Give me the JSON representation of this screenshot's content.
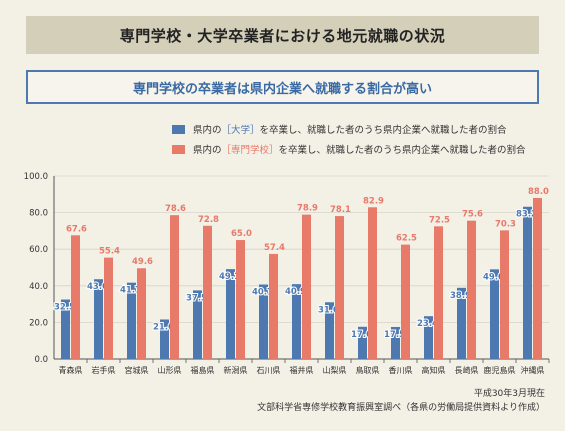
{
  "title": "専門学校・大学卒業者における地元就職の状況",
  "subtitle": "専門学校の卒業者は県内企業へ就職する割合が高い",
  "legend": [
    {
      "pre": "県内の",
      "highlight": "［大学］",
      "post": "を卒業し、就職した者のうち県内企業へ就職した者の割合",
      "color": "#4e79b0"
    },
    {
      "pre": "県内の",
      "highlight": "［専門学校］",
      "post": "を卒業し、就職した者のうち県内企業へ就職した者の割合",
      "color": "#e87a6a"
    }
  ],
  "footnote": {
    "date": "平成30年3月現在",
    "source": "文部科学省専修学校教育振興室調べ（各県の労働局提供資料より作成）"
  },
  "chart_data": {
    "type": "bar",
    "categories": [
      "青森県",
      "岩手県",
      "宮城県",
      "山形県",
      "福島県",
      "新潟県",
      "石川県",
      "福井県",
      "山梨県",
      "鳥取県",
      "香川県",
      "高知県",
      "長崎県",
      "鹿児島県",
      "沖縄県"
    ],
    "series": [
      {
        "values": [
          32.5,
          43.6,
          41.7,
          21.6,
          37.5,
          49.1,
          40.7,
          40.9,
          31.0,
          17.6,
          17.5,
          23.4,
          38.9,
          49.0,
          83.2
        ],
        "color": "#4e79b0"
      },
      {
        "values": [
          67.6,
          55.4,
          49.6,
          78.6,
          72.8,
          65.0,
          57.4,
          78.9,
          78.1,
          82.9,
          62.5,
          72.5,
          75.6,
          70.3,
          88.0
        ],
        "color": "#e87a6a"
      }
    ],
    "ylim": [
      0,
      100
    ],
    "yticks": [
      "0.0",
      "20.0",
      "40.0",
      "60.0",
      "80.0",
      "100.0"
    ],
    "grid": true
  }
}
